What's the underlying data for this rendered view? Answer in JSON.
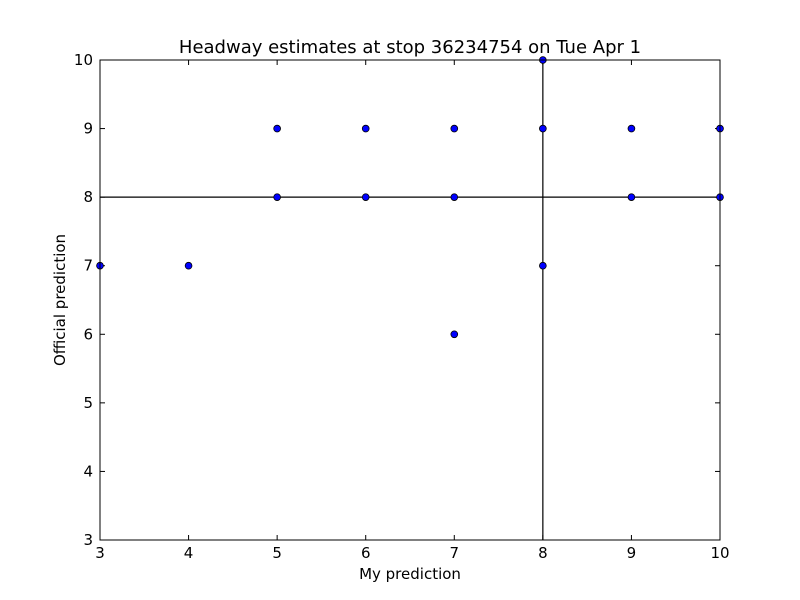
{
  "chart_data": {
    "type": "scatter",
    "title": "Headway estimates at stop 36234754 on Tue Apr 1",
    "xlabel": "My prediction",
    "ylabel": "Official prediction",
    "xlim": [
      3,
      10
    ],
    "ylim": [
      3,
      10
    ],
    "xticks": [
      "3",
      "4",
      "5",
      "6",
      "7",
      "8",
      "9",
      "10"
    ],
    "yticks": [
      "3",
      "4",
      "5",
      "6",
      "7",
      "8",
      "9",
      "10"
    ],
    "grid": false,
    "reference_lines": {
      "vertical_x": 8,
      "horizontal_y": 8
    },
    "marker_color": "#0000ff",
    "points": [
      {
        "x": 3,
        "y": 7
      },
      {
        "x": 4,
        "y": 7
      },
      {
        "x": 5,
        "y": 8
      },
      {
        "x": 5,
        "y": 9
      },
      {
        "x": 6,
        "y": 8
      },
      {
        "x": 6,
        "y": 9
      },
      {
        "x": 7,
        "y": 6
      },
      {
        "x": 7,
        "y": 8
      },
      {
        "x": 7,
        "y": 9
      },
      {
        "x": 8,
        "y": 7
      },
      {
        "x": 8,
        "y": 9
      },
      {
        "x": 8,
        "y": 10
      },
      {
        "x": 9,
        "y": 8
      },
      {
        "x": 9,
        "y": 9
      },
      {
        "x": 10,
        "y": 8
      },
      {
        "x": 10,
        "y": 9
      }
    ]
  }
}
